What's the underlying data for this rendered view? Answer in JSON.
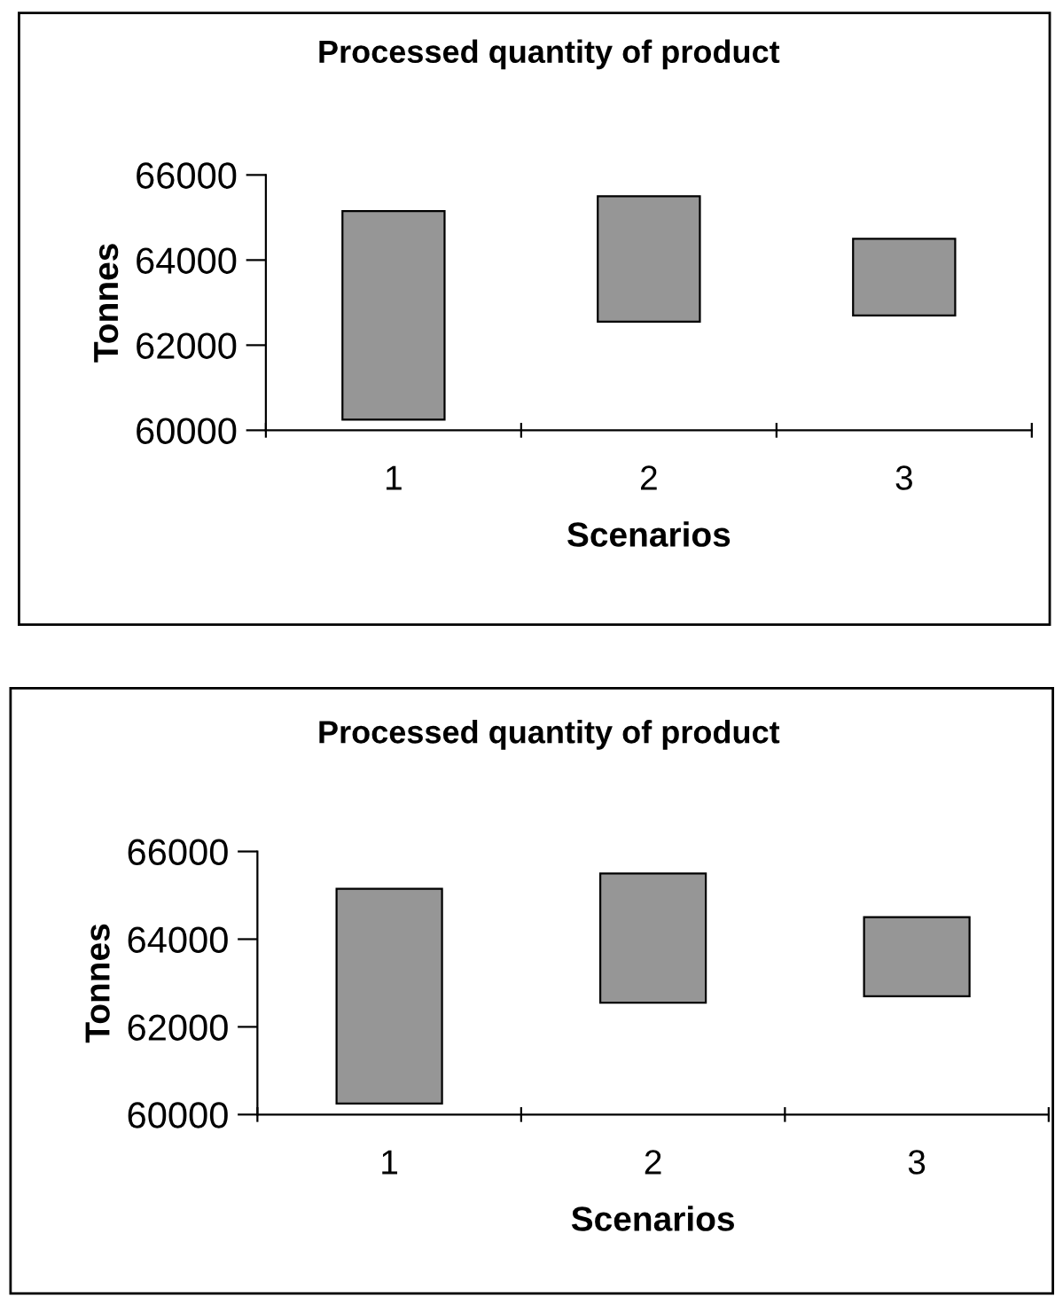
{
  "chart_data": [
    {
      "type": "bar",
      "title": "Processed quantity of product",
      "xlabel": "Scenarios",
      "ylabel": "Tonnes",
      "categories": [
        "1",
        "2",
        "3"
      ],
      "base": [
        60250,
        62550,
        62700
      ],
      "values": [
        4900,
        2950,
        1800
      ],
      "color": "#969696",
      "ylim": [
        60000,
        66000
      ],
      "yticks": [
        60000,
        62000,
        64000,
        66000
      ],
      "grid": false,
      "legend": false
    },
    {
      "type": "bar",
      "title": "Processed quantity of product",
      "xlabel": "Scenarios",
      "ylabel": "Tonnes",
      "categories": [
        "1",
        "2",
        "3"
      ],
      "base": [
        60250,
        62550,
        62700
      ],
      "values": [
        4900,
        2950,
        1800
      ],
      "color": "#969696",
      "ylim": [
        60000,
        66000
      ],
      "yticks": [
        60000,
        62000,
        64000,
        66000
      ],
      "grid": false,
      "legend": false
    }
  ]
}
